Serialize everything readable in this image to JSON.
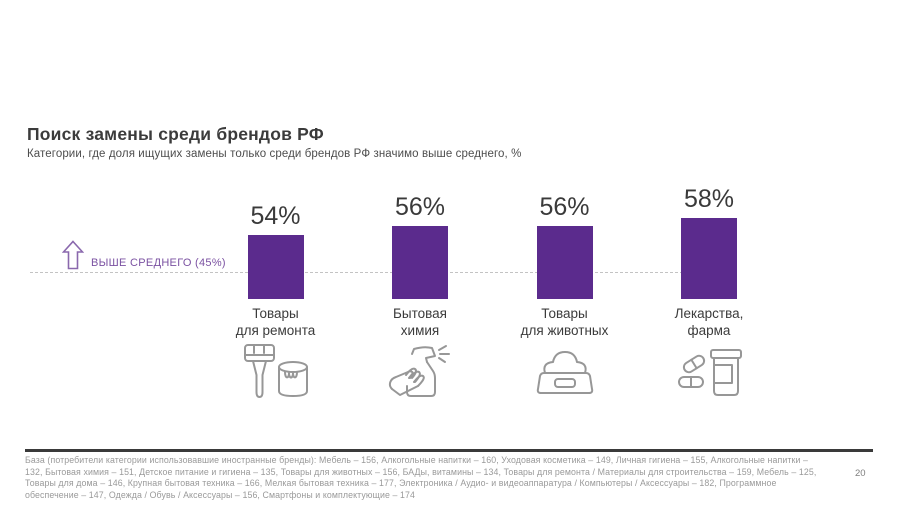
{
  "slide": {
    "title": "Поиск замены среди брендов РФ",
    "subtitle": "Категории, где доля ищущих замены только среди брендов РФ значимо выше среднего, %"
  },
  "chart_data": {
    "type": "bar",
    "title": "Поиск замены среди брендов РФ",
    "subtitle": "Категории, где доля ищущих замены только среди брендов РФ значимо выше среднего, %",
    "categories": [
      "Товары для ремонта",
      "Бытовая химия",
      "Товары для животных",
      "Лекарства, фарма"
    ],
    "categories_display": [
      "Товары\nдля ремонта",
      "Бытовая\nхимия",
      "Товары\nдля животных",
      "Лекарства,\nфарма"
    ],
    "values": [
      54,
      56,
      56,
      58
    ],
    "value_labels": [
      "54%",
      "56%",
      "56%",
      "58%"
    ],
    "unit": "%",
    "benchmark": {
      "value": 45,
      "label": "ВЫШЕ СРЕДНЕГО (45%)"
    },
    "bar_color": "#5b2b8d",
    "accent_color": "#7b52a2",
    "icon_names": [
      "paint-brush-and-can-icon",
      "spray-cleaner-hand-icon",
      "pet-bowl-icon",
      "pills-and-bottle-icon"
    ],
    "legend_position": "none",
    "grid": "off",
    "annotation": "dashed benchmark line at 45%"
  },
  "footer": {
    "text": "База (потребители категории использовавшие иностранные бренды): Мебель – 156, Алкогольные напитки – 160, Уходовая косметика – 149, Личная гигиена – 155, Алкогольные напитки – 132, Бытовая химия – 151, Детское питание и гигиена – 135, Товары для животных – 156, БАДы, витамины – 134, Товары для ремонта / Материалы для строительства – 159, Мебель – 125, Товары для дома – 146, Крупная бытовая техника – 166, Мелкая бытовая техника – 177, Электроника / Аудио- и видеоаппаратура / Компьютеры / Аксессуары – 182, Программное обеспечение – 147, Одежда / Обувь / Аксессуары – 156, Смартфоны и комплектующие – 174",
    "page_number": "20"
  }
}
